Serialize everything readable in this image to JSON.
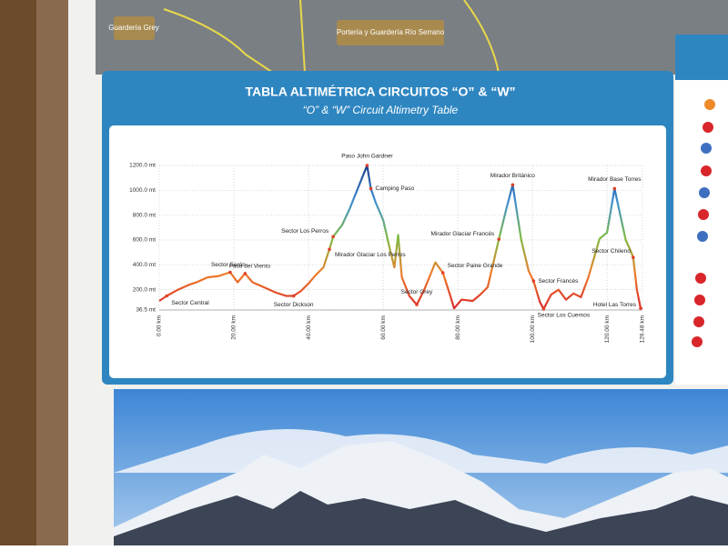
{
  "chart_data": {
    "type": "line",
    "title": "TABLA ALTIMÉTRICA CIRCUITOS “O” & “W”",
    "subtitle": "“O” & “W” Circuit Altimetry Table",
    "x": [
      0,
      2,
      5,
      8,
      10,
      13,
      16,
      19,
      21,
      23,
      25,
      28,
      31,
      34,
      36,
      38,
      40,
      42,
      44,
      45.6,
      46.6,
      49,
      51,
      53,
      55.7,
      56.7,
      58,
      60,
      62,
      63,
      64,
      65,
      67,
      69,
      71,
      74,
      76,
      78,
      79,
      81,
      84,
      86,
      88,
      91,
      93,
      94.7,
      97,
      99,
      100.3,
      102,
      103,
      105,
      107,
      109,
      111,
      113,
      115,
      118,
      120,
      122,
      125,
      126.5,
      127,
      128,
      129,
      129.48
    ],
    "values": [
      110,
      150,
      200,
      240,
      260,
      300,
      310,
      340,
      260,
      330,
      260,
      220,
      180,
      150,
      150,
      190,
      250,
      320,
      380,
      525,
      627,
      720,
      850,
      1000,
      1200,
      1014,
      900,
      760,
      500,
      380,
      640,
      300,
      150,
      80,
      200,
      420,
      336,
      150,
      50,
      120,
      110,
      160,
      220,
      606,
      850,
      1044,
      600,
      350,
      270,
      100,
      45,
      160,
      200,
      120,
      170,
      140,
      300,
      610,
      660,
      1014,
      600,
      500,
      460,
      200,
      50,
      50
    ],
    "line_colors": [
      "#d8262b",
      "#ee7d2a",
      "#7dbb45",
      "#3f8fd0",
      "#1b3e8c"
    ],
    "xlim": [
      0,
      129.48
    ],
    "ylim": [
      36.5,
      1200
    ],
    "xticks": [
      {
        "value": 0,
        "label": "0.00 km"
      },
      {
        "value": 20,
        "label": "20.00 km"
      },
      {
        "value": 40,
        "label": "40.00 km"
      },
      {
        "value": 60,
        "label": "60.00 km"
      },
      {
        "value": 80,
        "label": "80.00 km"
      },
      {
        "value": 100,
        "label": "100.00 km"
      },
      {
        "value": 120,
        "label": "120.00 km"
      },
      {
        "value": 129.48,
        "label": "129.48 km"
      }
    ],
    "yticks": [
      {
        "value": 36.5,
        "label": "36.5 mt"
      },
      {
        "value": 200,
        "label": "200.0 mt"
      },
      {
        "value": 400,
        "label": "400.0 mt"
      },
      {
        "value": 600,
        "label": "600.0 mt"
      },
      {
        "value": 800,
        "label": "800.0 mt"
      },
      {
        "value": 1000,
        "label": "1000.0 mt"
      },
      {
        "value": 1200,
        "label": "1200.0 mt"
      }
    ],
    "grid": true,
    "annotations": [
      {
        "label": "Sector Central",
        "x": 2,
        "y": 150
      },
      {
        "label": "Sector Serón",
        "x": 19,
        "y": 340
      },
      {
        "label": "Paso del Viento",
        "x": 23,
        "y": 330
      },
      {
        "label": "Sector Dickson",
        "x": 36,
        "y": 150
      },
      {
        "label": "Sector Los Perros",
        "x": 46.6,
        "y": 627
      },
      {
        "label": "Mirador Glaciar Los Perros",
        "x": 45.6,
        "y": 525
      },
      {
        "label": "Paso John Gardner",
        "x": 55.7,
        "y": 1200
      },
      {
        "label": "Camping Paso",
        "x": 56.7,
        "y": 1014
      },
      {
        "label": "Sector Grey",
        "x": 69,
        "y": 80
      },
      {
        "label": "Sector Paine Grande",
        "x": 76,
        "y": 336
      },
      {
        "label": "Mirador Glaciar Francés",
        "x": 91,
        "y": 606
      },
      {
        "label": "Mirador Británico",
        "x": 94.7,
        "y": 1044
      },
      {
        "label": "Sector Francés",
        "x": 100.3,
        "y": 270
      },
      {
        "label": "Sector Los Cuernos",
        "x": 103,
        "y": 45
      },
      {
        "label": "Mirador Base Torres",
        "x": 122,
        "y": 1014
      },
      {
        "label": "Sector Chileno",
        "x": 127,
        "y": 460
      },
      {
        "label": "Hotel Las Torres",
        "x": 129,
        "y": 50
      }
    ]
  },
  "map_labels": [
    "Guardería Grey",
    "Portería y Guardería Río Serrano"
  ]
}
